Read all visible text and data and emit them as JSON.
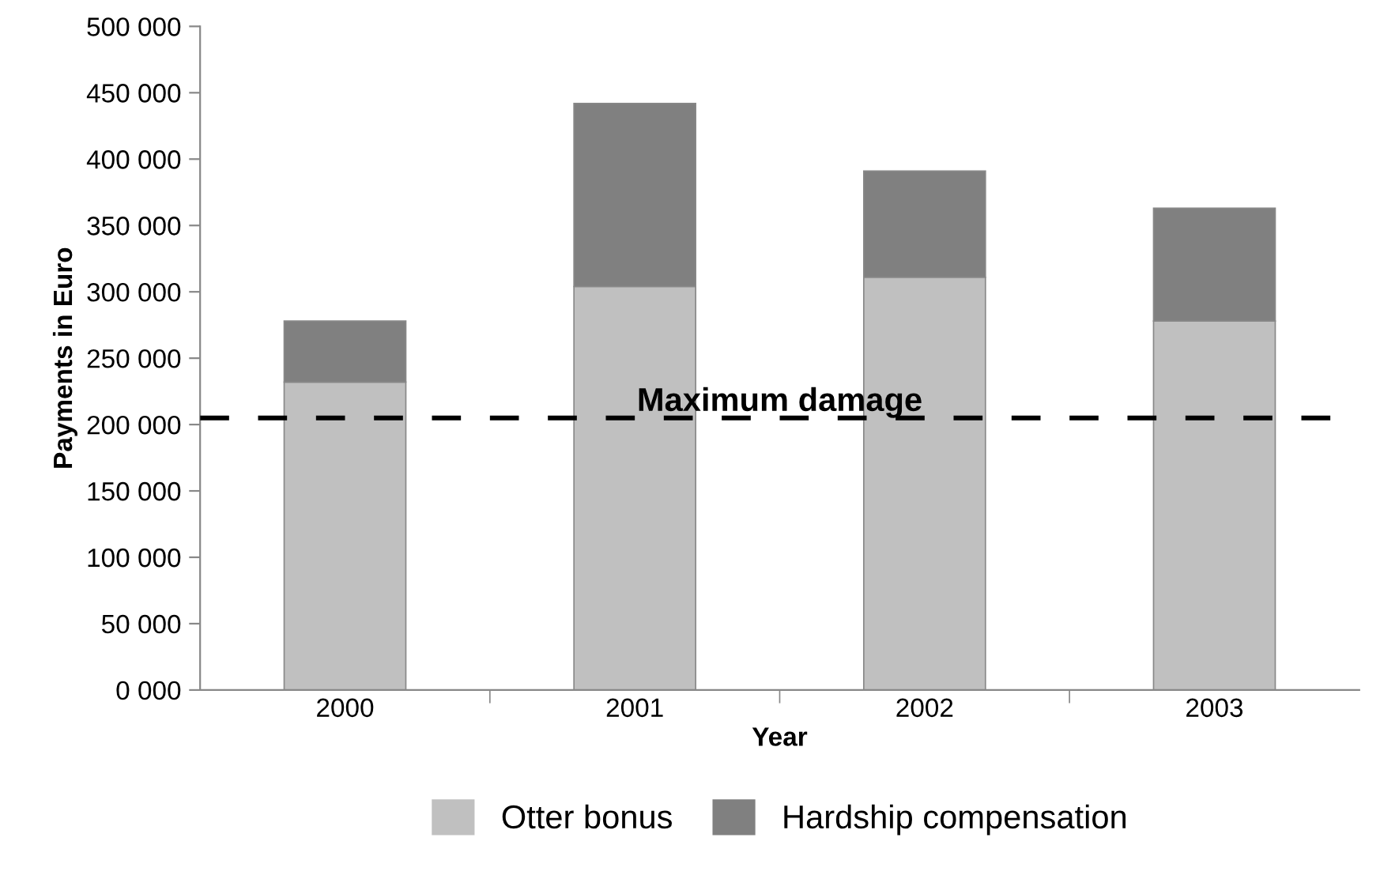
{
  "chart_data": {
    "type": "bar",
    "stacked": true,
    "xlabel": "Year",
    "ylabel": "Payments in Euro",
    "categories": [
      "2000",
      "2001",
      "2002",
      "2003"
    ],
    "series": [
      {
        "name": "Otter bonus",
        "color": "#c0c0c0",
        "values": [
          232000,
          304000,
          311000,
          278000
        ]
      },
      {
        "name": "Hardship compensation",
        "color": "#808080",
        "values": [
          46000,
          138000,
          80000,
          85000
        ]
      }
    ],
    "ylim": [
      0,
      500000
    ],
    "yticks": [
      {
        "value": 0,
        "label": "0 000"
      },
      {
        "value": 50000,
        "label": "50 000"
      },
      {
        "value": 100000,
        "label": "100 000"
      },
      {
        "value": 150000,
        "label": "150 000"
      },
      {
        "value": 200000,
        "label": "200 000"
      },
      {
        "value": 250000,
        "label": "250 000"
      },
      {
        "value": 300000,
        "label": "300 000"
      },
      {
        "value": 350000,
        "label": "350 000"
      },
      {
        "value": 400000,
        "label": "400 000"
      },
      {
        "value": 450000,
        "label": "450 000"
      },
      {
        "value": 500000,
        "label": "500 000"
      }
    ],
    "ref_lines": [
      {
        "axis": "y",
        "value": 205000,
        "label": "Maximum damage",
        "color": "#000000",
        "line_style": "dashed"
      }
    ],
    "grid": false,
    "legend": "bottom"
  }
}
